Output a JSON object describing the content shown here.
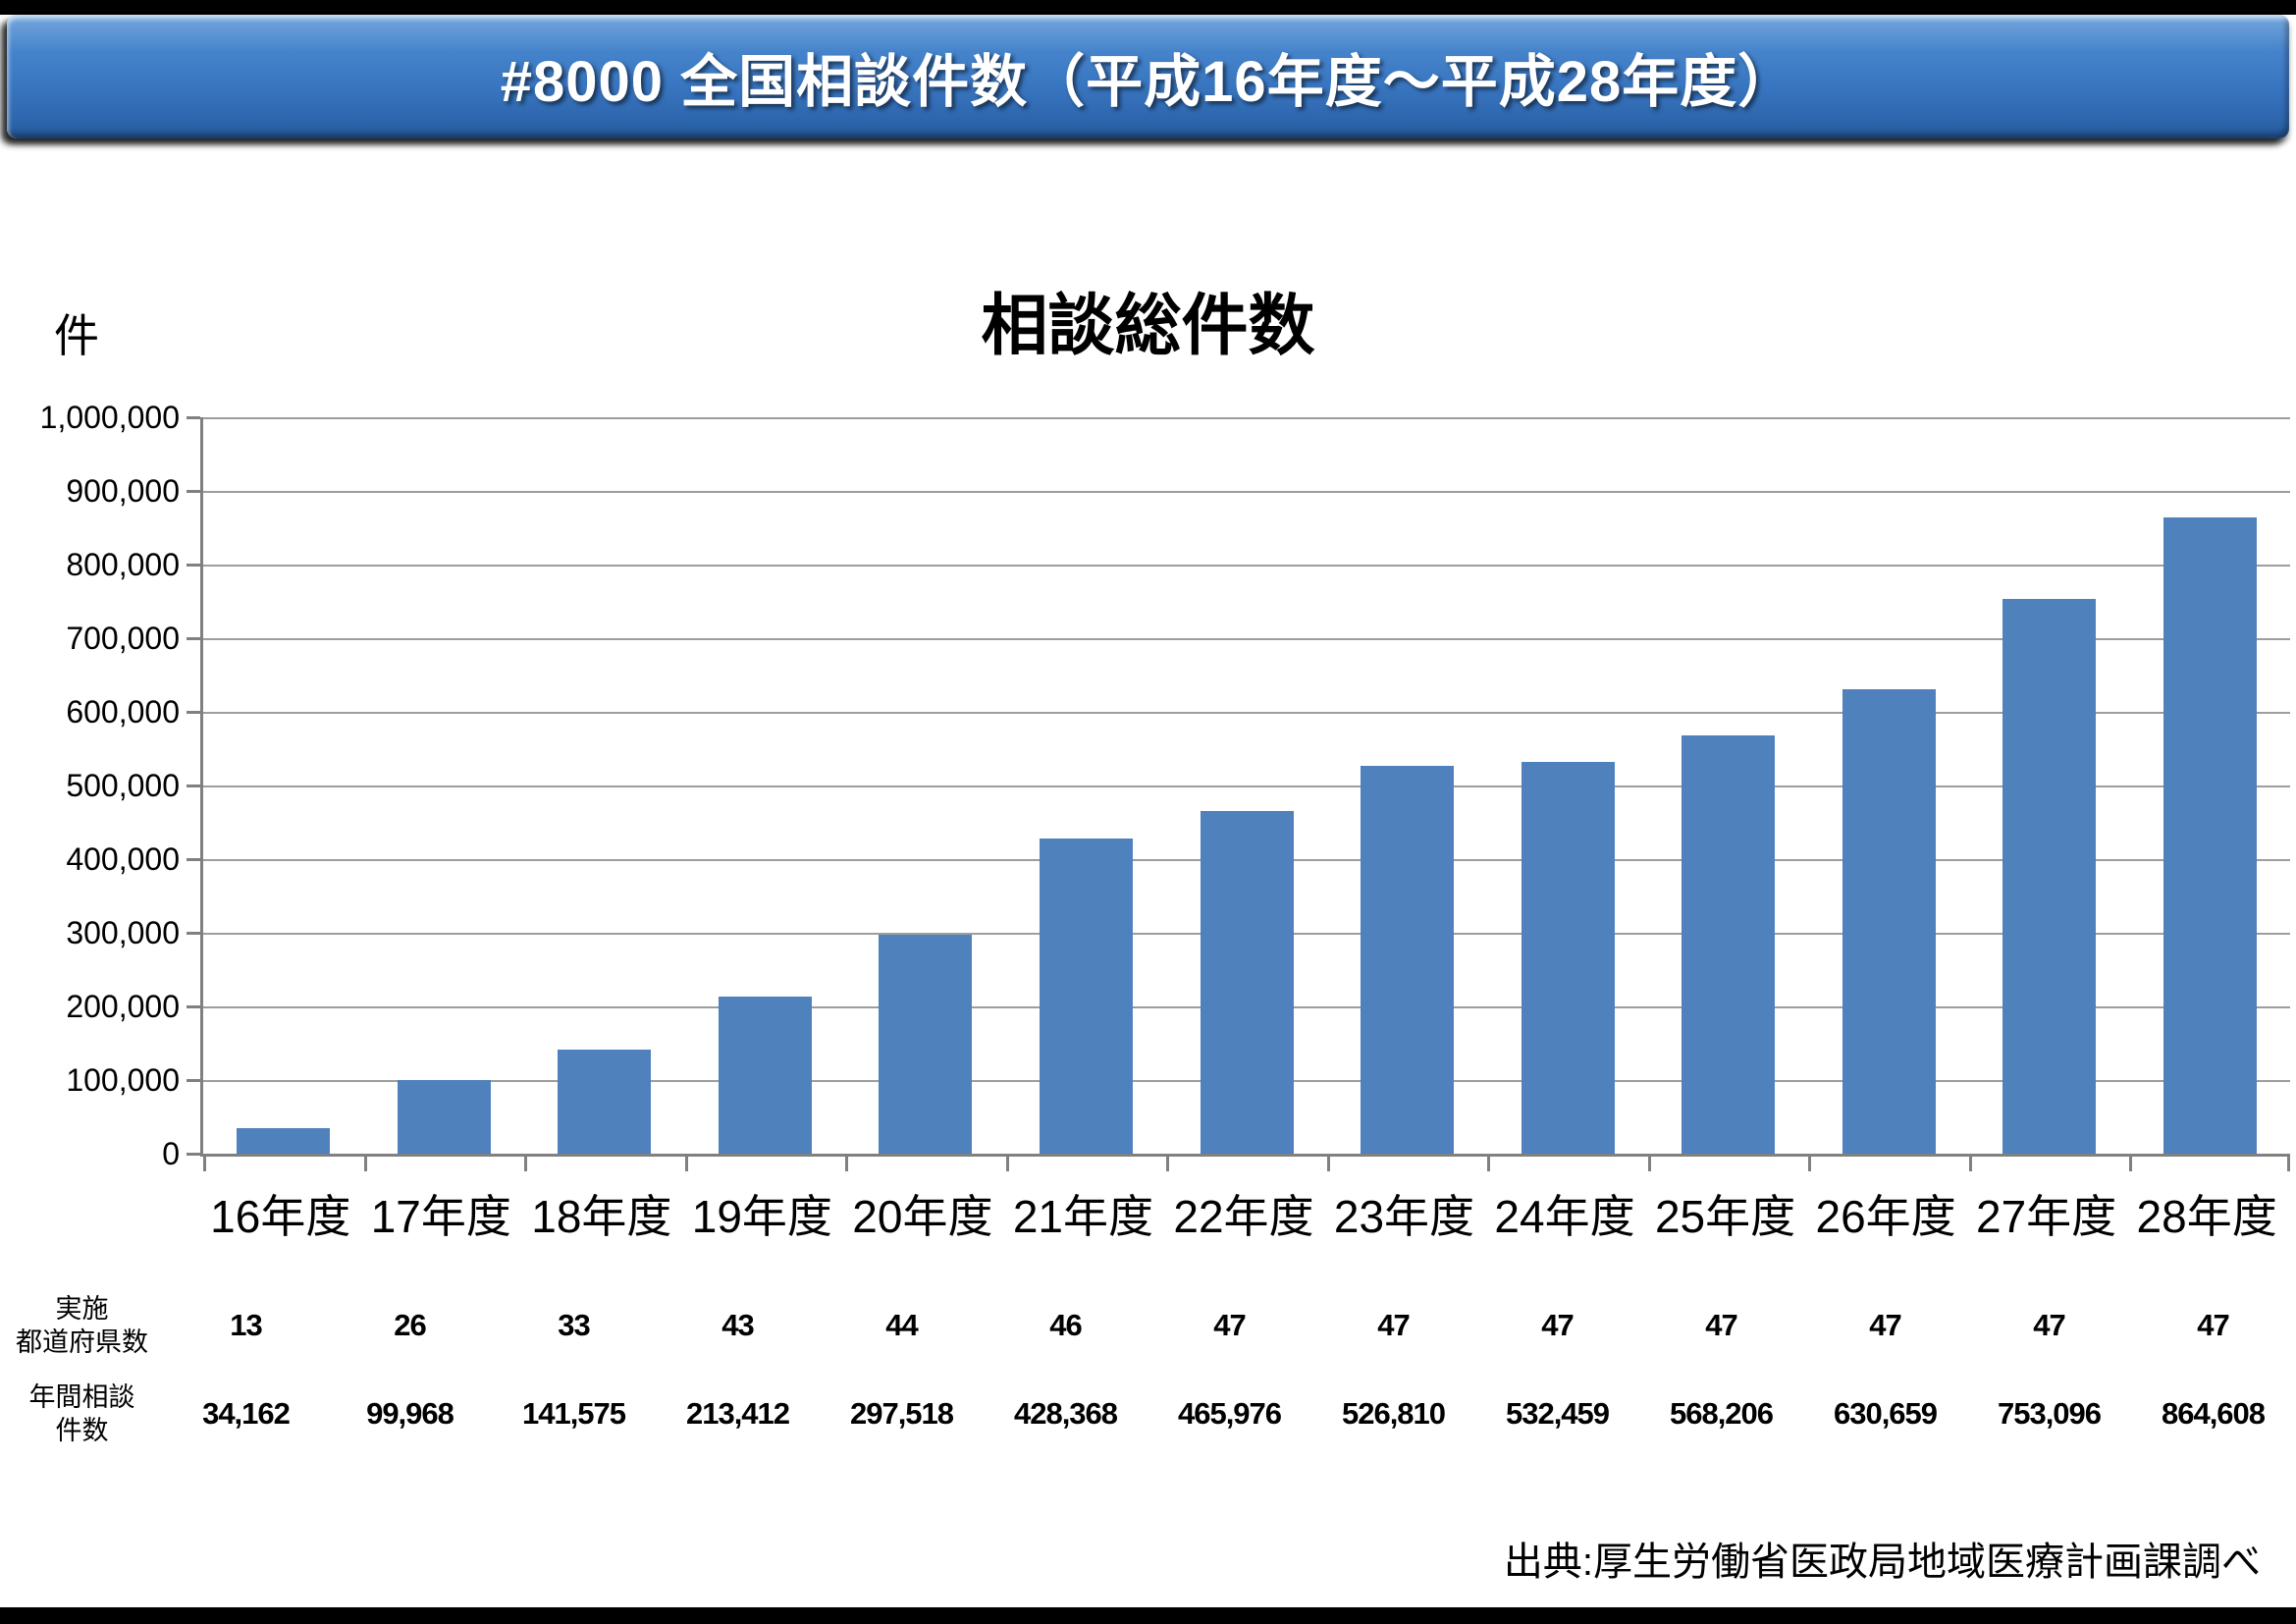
{
  "header": {
    "title": "#8000 全国相談件数（平成16年度～平成28年度）"
  },
  "chart_data": {
    "type": "bar",
    "title": "相談総件数",
    "ylabel": "件",
    "xlabel": "",
    "categories": [
      "16年度",
      "17年度",
      "18年度",
      "19年度",
      "20年度",
      "21年度",
      "22年度",
      "23年度",
      "24年度",
      "25年度",
      "26年度",
      "27年度",
      "28年度"
    ],
    "values": [
      34162,
      99968,
      141575,
      213412,
      297518,
      428368,
      465976,
      526810,
      532459,
      568206,
      630659,
      753096,
      864608
    ],
    "ylim": [
      0,
      1000000
    ],
    "ytick_step": 100000,
    "ytick_labels": [
      "1,000,000",
      "900,000",
      "800,000",
      "700,000",
      "600,000",
      "500,000",
      "400,000",
      "300,000",
      "200,000",
      "100,000",
      "0"
    ],
    "grid": true,
    "legend": "none",
    "bar_color": "#4f81bd"
  },
  "table": {
    "rows": [
      {
        "label_lines": [
          "実施",
          "都道府県数"
        ],
        "values": [
          "13",
          "26",
          "33",
          "43",
          "44",
          "46",
          "47",
          "47",
          "47",
          "47",
          "47",
          "47",
          "47"
        ]
      },
      {
        "label_lines": [
          "年間相談",
          "件数"
        ],
        "values": [
          "34,162",
          "99,968",
          "141,575",
          "213,412",
          "297,518",
          "428,368",
          "465,976",
          "526,810",
          "532,459",
          "568,206",
          "630,659",
          "753,096",
          "864,608"
        ]
      }
    ]
  },
  "footer": {
    "source": "出典:厚生労働省医政局地域医療計画課調べ"
  },
  "colors": {
    "bar": "#4f81bd",
    "gridline": "#9d9d9d",
    "axis": "#808080",
    "banner_blue": "#3a77c2",
    "text": "#000000"
  }
}
